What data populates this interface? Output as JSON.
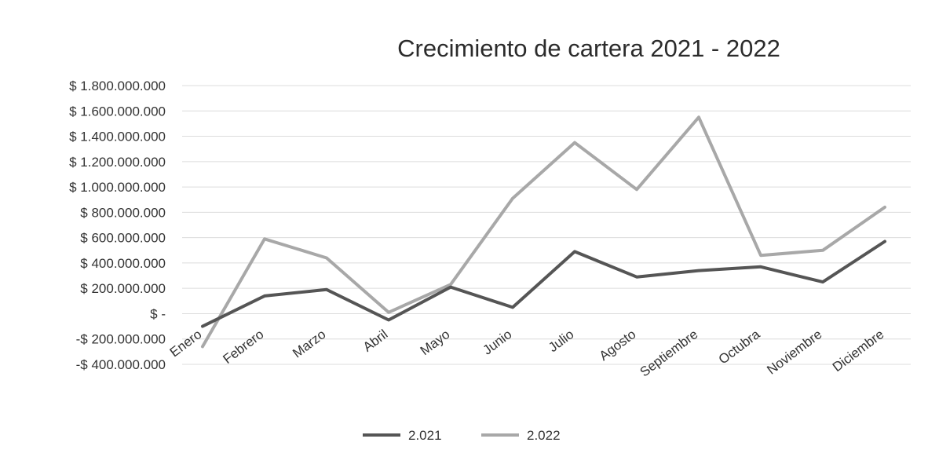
{
  "chart_data": {
    "type": "line",
    "title": "Crecimiento de cartera 2021 - 2022",
    "xlabel": "",
    "ylabel": "",
    "categories": [
      "Enero",
      "Febrero",
      "Marzo",
      "Abril",
      "Mayo",
      "Junio",
      "Julio",
      "Agosto",
      "Septiembre",
      "Octubra",
      "Noviembre",
      "Diciembre"
    ],
    "ylim": [
      -400000000,
      1800000000
    ],
    "y_tick_values": [
      1800000000,
      1600000000,
      1400000000,
      1200000000,
      1000000000,
      800000000,
      600000000,
      400000000,
      200000000,
      0,
      -200000000,
      -400000000
    ],
    "y_tick_labels": [
      "$ 1.800.000.000",
      "$ 1.600.000.000",
      "$ 1.400.000.000",
      "$ 1.200.000.000",
      "$ 1.000.000.000",
      "$ 800.000.000",
      "$ 600.000.000",
      "$ 400.000.000",
      "$ 200.000.000",
      "$ -",
      "-$ 200.000.000",
      "-$ 400.000.000"
    ],
    "grid": true,
    "legend_position": "bottom",
    "series": [
      {
        "name": "2.021",
        "color": "#555555",
        "values": [
          -100000000,
          140000000,
          190000000,
          -50000000,
          210000000,
          50000000,
          490000000,
          290000000,
          340000000,
          370000000,
          250000000,
          570000000
        ]
      },
      {
        "name": "2.022",
        "color": "#a8a8a8",
        "values": [
          -260000000,
          590000000,
          440000000,
          10000000,
          230000000,
          910000000,
          1350000000,
          980000000,
          1550000000,
          460000000,
          500000000,
          840000000
        ]
      }
    ]
  }
}
